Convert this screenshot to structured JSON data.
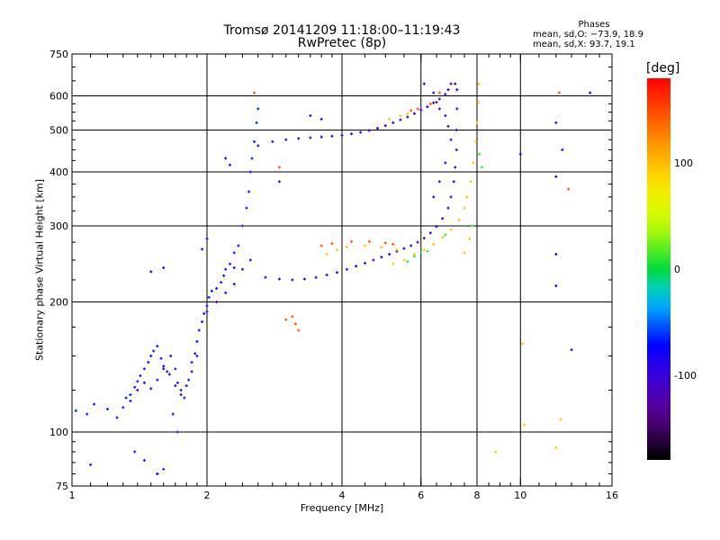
{
  "title": {
    "line1": "Tromsø 20141209 11:18:00–11:19:43",
    "line2": "RwPretec (8p)"
  },
  "phases": {
    "heading": "Phases",
    "o_stats": "mean, sd,O: −73.9, 18.9",
    "x_stats": "mean, sd,X:  93.7, 19.1"
  },
  "chart_data": {
    "type": "scatter",
    "xlabel": "Frequency [MHz]",
    "ylabel": "Stationary phase Virtual Height [km]",
    "x_scale": "log",
    "y_scale": "log",
    "xlim": [
      1,
      16
    ],
    "ylim": [
      75,
      750
    ],
    "x_ticks": [
      1,
      2,
      4,
      6,
      8,
      10,
      16
    ],
    "x_tick_labels": [
      "1",
      "2",
      "4",
      "6",
      "8",
      "10",
      "16"
    ],
    "x_grid": [
      2,
      4,
      6,
      8,
      10
    ],
    "y_ticks": [
      75,
      100,
      200,
      300,
      400,
      500,
      600,
      750
    ],
    "y_tick_labels": [
      "75",
      "100",
      "200",
      "300",
      "400",
      "500",
      "600",
      "750"
    ],
    "y_grid": [
      100,
      200,
      300,
      400,
      500,
      600
    ],
    "grid": true,
    "colorbar": {
      "label": "[deg]",
      "range": [
        -180,
        180
      ],
      "ticks": [
        -100,
        0,
        100
      ],
      "tick_labels": [
        "-100",
        "0",
        "100"
      ],
      "colormap": "rainbow (black-purple-blue-cyan-green-yellow-orange-red)"
    },
    "series": [
      {
        "color_phase": -65,
        "points": [
          [
            1.02,
            112
          ],
          [
            1.08,
            110
          ],
          [
            1.12,
            116
          ],
          [
            1.2,
            113
          ],
          [
            1.26,
            108
          ],
          [
            1.3,
            114
          ],
          [
            1.32,
            120
          ],
          [
            1.35,
            122
          ],
          [
            1.38,
            127
          ],
          [
            1.4,
            131
          ],
          [
            1.42,
            135
          ],
          [
            1.45,
            140
          ],
          [
            1.48,
            145
          ],
          [
            1.5,
            150
          ],
          [
            1.52,
            154
          ],
          [
            1.55,
            158
          ],
          [
            1.58,
            148
          ],
          [
            1.6,
            142
          ],
          [
            1.63,
            138
          ],
          [
            1.66,
            150
          ],
          [
            1.7,
            140
          ],
          [
            1.72,
            130
          ],
          [
            1.75,
            125
          ],
          [
            1.78,
            120
          ],
          [
            1.82,
            132
          ],
          [
            1.85,
            145
          ],
          [
            1.88,
            152
          ],
          [
            1.9,
            162
          ],
          [
            1.92,
            172
          ],
          [
            1.95,
            180
          ],
          [
            1.97,
            188
          ],
          [
            2.0,
            196
          ],
          [
            2.02,
            205
          ],
          [
            2.05,
            212
          ],
          [
            2.1,
            215
          ],
          [
            2.15,
            222
          ],
          [
            2.18,
            230
          ],
          [
            2.2,
            238
          ],
          [
            2.25,
            245
          ],
          [
            2.3,
            260
          ],
          [
            2.35,
            270
          ],
          [
            2.4,
            300
          ],
          [
            2.45,
            330
          ],
          [
            2.48,
            360
          ],
          [
            2.5,
            400
          ],
          [
            2.52,
            430
          ],
          [
            2.55,
            470
          ],
          [
            2.58,
            520
          ],
          [
            2.6,
            560
          ],
          [
            1.38,
            90
          ],
          [
            1.45,
            86
          ],
          [
            1.55,
            80
          ],
          [
            1.6,
            82
          ],
          [
            1.1,
            84
          ],
          [
            1.68,
            110
          ],
          [
            1.72,
            100
          ]
        ]
      },
      {
        "color_phase": -105,
        "points": [
          [
            1.35,
            118
          ],
          [
            1.4,
            125
          ],
          [
            1.45,
            130
          ],
          [
            1.5,
            126
          ],
          [
            1.55,
            132
          ],
          [
            1.6,
            140
          ],
          [
            1.65,
            136
          ],
          [
            1.7,
            128
          ],
          [
            1.75,
            122
          ],
          [
            1.8,
            128
          ],
          [
            1.85,
            138
          ],
          [
            1.9,
            150
          ],
          [
            2.0,
            190
          ],
          [
            2.1,
            200
          ],
          [
            2.2,
            210
          ],
          [
            2.3,
            220
          ],
          [
            2.4,
            238
          ],
          [
            2.5,
            250
          ],
          [
            1.5,
            235
          ],
          [
            1.6,
            240
          ],
          [
            1.55,
            80
          ]
        ]
      },
      {
        "color_phase": -110,
        "points": [
          [
            2.7,
            228
          ],
          [
            2.9,
            226
          ],
          [
            3.1,
            225
          ],
          [
            3.3,
            226
          ],
          [
            3.5,
            228
          ],
          [
            3.7,
            231
          ],
          [
            3.9,
            234
          ],
          [
            4.1,
            238
          ],
          [
            4.3,
            242
          ],
          [
            4.5,
            246
          ],
          [
            4.7,
            250
          ],
          [
            4.9,
            254
          ],
          [
            5.1,
            258
          ],
          [
            5.3,
            262
          ],
          [
            5.5,
            266
          ],
          [
            5.7,
            270
          ],
          [
            5.9,
            275
          ],
          [
            6.1,
            281
          ],
          [
            6.3,
            289
          ],
          [
            6.5,
            299
          ],
          [
            6.7,
            312
          ],
          [
            6.9,
            330
          ],
          [
            7.0,
            350
          ],
          [
            7.1,
            380
          ],
          [
            7.15,
            410
          ],
          [
            7.2,
            450
          ],
          [
            7.2,
            500
          ],
          [
            7.22,
            560
          ],
          [
            7.22,
            620
          ],
          [
            7.15,
            640
          ],
          [
            2.6,
            460
          ],
          [
            2.8,
            470
          ],
          [
            3.0,
            475
          ],
          [
            3.2,
            478
          ],
          [
            3.4,
            480
          ],
          [
            3.6,
            482
          ],
          [
            3.8,
            484
          ],
          [
            4.0,
            486
          ],
          [
            4.2,
            490
          ],
          [
            4.4,
            494
          ],
          [
            4.6,
            499
          ],
          [
            4.8,
            505
          ],
          [
            5.0,
            512
          ],
          [
            5.2,
            520
          ],
          [
            5.4,
            528
          ],
          [
            5.6,
            536
          ],
          [
            5.8,
            546
          ],
          [
            6.0,
            556
          ],
          [
            6.2,
            566
          ],
          [
            6.4,
            578
          ],
          [
            6.6,
            590
          ],
          [
            6.8,
            605
          ],
          [
            6.9,
            620
          ],
          [
            7.0,
            640
          ],
          [
            6.1,
            640
          ],
          [
            6.4,
            610
          ],
          [
            6.5,
            580
          ],
          [
            6.6,
            560
          ],
          [
            6.8,
            540
          ],
          [
            6.9,
            510
          ],
          [
            7.0,
            475
          ],
          [
            6.4,
            350
          ],
          [
            6.6,
            380
          ],
          [
            6.8,
            420
          ]
        ]
      },
      {
        "color_phase": 95,
        "points": [
          [
            5.2,
            245
          ],
          [
            5.5,
            250
          ],
          [
            5.8,
            258
          ],
          [
            6.1,
            264
          ],
          [
            6.4,
            272
          ],
          [
            6.7,
            282
          ],
          [
            7.0,
            294
          ],
          [
            7.3,
            310
          ],
          [
            7.5,
            330
          ],
          [
            7.6,
            350
          ],
          [
            7.75,
            380
          ],
          [
            7.85,
            420
          ],
          [
            7.95,
            470
          ],
          [
            8.0,
            520
          ],
          [
            8.05,
            580
          ],
          [
            8.08,
            640
          ],
          [
            7.7,
            280
          ],
          [
            7.5,
            260
          ],
          [
            3.7,
            258
          ],
          [
            3.9,
            264
          ],
          [
            4.1,
            268
          ],
          [
            4.5,
            270
          ],
          [
            4.9,
            268
          ],
          [
            5.3,
            264
          ],
          [
            5.1,
            530
          ],
          [
            5.4,
            540
          ],
          [
            5.6,
            545
          ],
          [
            12.3,
            107
          ],
          [
            8.8,
            90
          ],
          [
            12.0,
            92
          ],
          [
            10.2,
            104
          ],
          [
            10.1,
            160
          ]
        ]
      },
      {
        "color_phase": 145,
        "points": [
          [
            3.6,
            270
          ],
          [
            3.8,
            273
          ],
          [
            4.2,
            276
          ],
          [
            4.6,
            276
          ],
          [
            5.0,
            274
          ],
          [
            5.2,
            272
          ],
          [
            3.1,
            185
          ],
          [
            3.15,
            178
          ],
          [
            3.2,
            172
          ],
          [
            3.0,
            182
          ],
          [
            5.7,
            555
          ],
          [
            5.9,
            560
          ],
          [
            6.3,
            575
          ],
          [
            12.8,
            365
          ],
          [
            12.2,
            610
          ],
          [
            2.55,
            610
          ],
          [
            6.6,
            610
          ],
          [
            2.9,
            410
          ]
        ]
      },
      {
        "color_phase": 10,
        "points": [
          [
            5.8,
            255
          ],
          [
            6.0,
            260
          ],
          [
            6.2,
            262
          ],
          [
            6.8,
            286
          ],
          [
            7.8,
            300
          ],
          [
            8.1,
            440
          ],
          [
            8.2,
            410
          ],
          [
            5.6,
            248
          ]
        ]
      },
      {
        "color_phase": -100,
        "points": [
          [
            12.0,
            520
          ],
          [
            12.4,
            450
          ],
          [
            12.0,
            390
          ],
          [
            14.3,
            610
          ],
          [
            12.0,
            258
          ],
          [
            12.0,
            218
          ],
          [
            13.0,
            155
          ],
          [
            10.0,
            440
          ],
          [
            2.2,
            430
          ],
          [
            2.25,
            415
          ],
          [
            2.9,
            380
          ],
          [
            3.6,
            530
          ],
          [
            3.4,
            540
          ],
          [
            2.0,
            280
          ],
          [
            1.95,
            265
          ],
          [
            2.3,
            240
          ]
        ]
      }
    ]
  }
}
